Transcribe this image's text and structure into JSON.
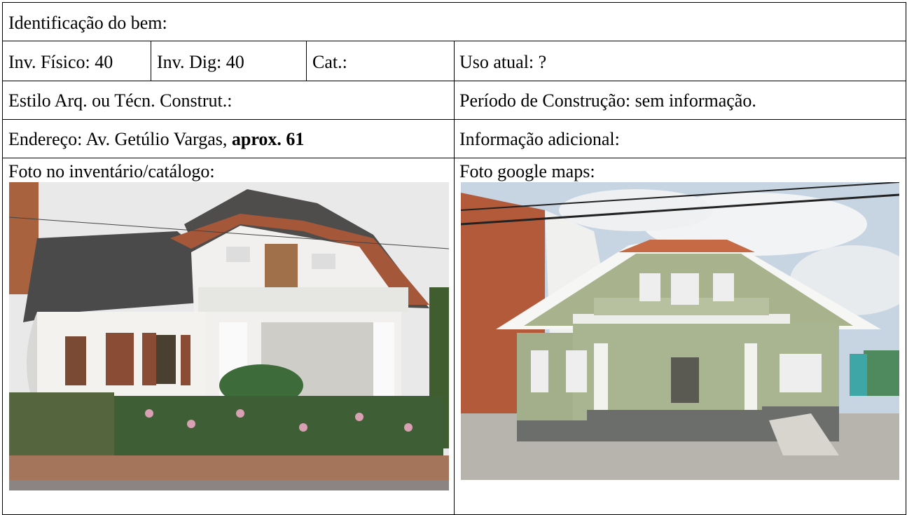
{
  "form": {
    "title": "Identificação do bem:",
    "inv_fisico": "Inv. Físico: 40",
    "inv_dig": "Inv. Dig: 40",
    "cat": "Cat.:",
    "uso_atual": "Uso atual: ?",
    "estilo": "Estilo Arq. ou Técn. Construt.:",
    "periodo": "Período de Construção: sem informação.",
    "endereco": "Endereço: Av. Getúlio Vargas,",
    "endereco_bold": "aprox. 61",
    "info": "Informação adicional:",
    "foto_inventario": "Foto no inventário/catálogo:",
    "foto_google": "Foto google maps:"
  }
}
